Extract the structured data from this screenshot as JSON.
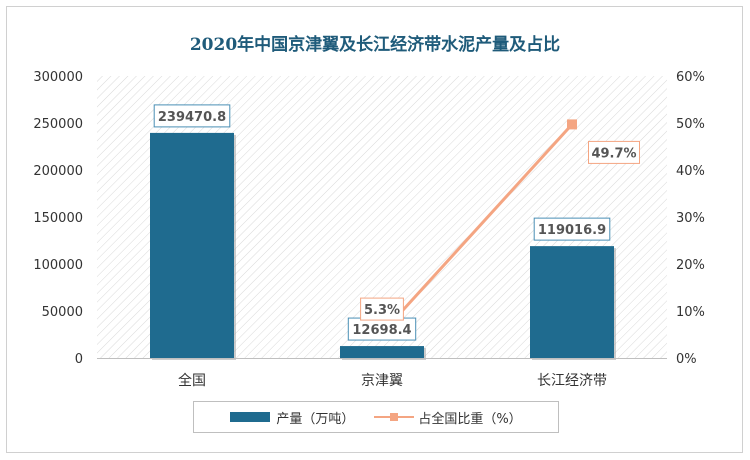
{
  "chart_data": {
    "type": "bar",
    "title": "2020年中国京津翼及长江经济带水泥产量及占比",
    "categories": [
      "全国",
      "京津翼",
      "长江经济带"
    ],
    "series": [
      {
        "name": "产量（万吨）",
        "type": "bar",
        "axis": "left",
        "values": [
          239470.8,
          12698.4,
          119016.9
        ],
        "labels": [
          "239470.8",
          "12698.4",
          "119016.9"
        ],
        "color": "#1f6b8f"
      },
      {
        "name": "占全国比重（%）",
        "type": "line",
        "axis": "right",
        "values": [
          null,
          5.3,
          49.7
        ],
        "labels": [
          "",
          "5.3%",
          "49.7%"
        ],
        "color": "#f4a582"
      }
    ],
    "y_left": {
      "min": 0,
      "max": 300000,
      "ticks": [
        "0",
        "50000",
        "100000",
        "150000",
        "200000",
        "250000",
        "300000"
      ]
    },
    "y_right": {
      "min": 0,
      "max": 60,
      "ticks": [
        "0%",
        "10%",
        "20%",
        "30%",
        "40%",
        "50%",
        "60%"
      ]
    },
    "grid": false,
    "legend_position": "bottom"
  }
}
